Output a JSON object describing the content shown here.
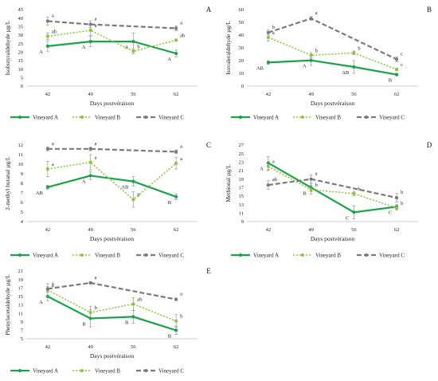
{
  "colors": {
    "A": "#1ba34a",
    "B": "#8cc63f",
    "C": "#7a7a7a",
    "axis": "#bfbfbf",
    "err": "#8a8a8a"
  },
  "chart_data": [
    {
      "type": "line",
      "panel": "A",
      "ylabel": "Isobutyraldehyde µg/L",
      "xlabel": "Days postvéraison",
      "categories": [
        "42",
        "49",
        "56",
        "62"
      ],
      "ylim": [
        0,
        45
      ],
      "yticks": [
        "0",
        "5",
        "10",
        "15",
        "20",
        "25",
        "30",
        "35",
        "40",
        "45"
      ],
      "series": [
        {
          "name": "Vineyard A",
          "values": [
            23.5,
            26.2,
            26.2,
            19.2
          ],
          "err": [
            3,
            3,
            5,
            2
          ],
          "labels": [
            "A",
            "A",
            "A",
            "A"
          ]
        },
        {
          "name": "Vineyard B",
          "values": [
            29.3,
            32.8,
            20.5,
            27.0
          ],
          "err": [
            2,
            3,
            1.5,
            0.5
          ],
          "labels": [
            "ab",
            "a",
            "b",
            "ab"
          ]
        },
        {
          "name": "Vineyard C",
          "values": [
            38.2,
            36.3,
            null,
            34.0
          ],
          "err": [
            2.5,
            2,
            0,
            1.5
          ],
          "labels": [
            "a",
            "a",
            "",
            "a"
          ]
        }
      ]
    },
    {
      "type": "line",
      "panel": "B",
      "ylabel": "Isovaleraldehyde µg/L",
      "xlabel": "Days postvéraison",
      "categories": [
        "42",
        "49",
        "56",
        "62"
      ],
      "ylim": [
        0,
        60
      ],
      "yticks": [
        "0",
        "10",
        "20",
        "30",
        "40",
        "50",
        "60"
      ],
      "series": [
        {
          "name": "Vineyard A",
          "values": [
            18.5,
            20.2,
            15.0,
            9.0
          ],
          "err": [
            1.5,
            4,
            5,
            1
          ],
          "labels": [
            "AB",
            "A",
            "AB",
            "B"
          ]
        },
        {
          "name": "Vineyard B",
          "values": [
            38.2,
            24.2,
            26.0,
            13.0
          ],
          "err": [
            3,
            2,
            1.5,
            1
          ],
          "labels": [
            "a",
            "b",
            "b",
            "c"
          ]
        },
        {
          "name": "Vineyard C",
          "values": [
            42.0,
            53.0,
            null,
            21.0
          ],
          "err": [
            2,
            1.5,
            0,
            2
          ],
          "labels": [
            "b",
            "a",
            "",
            "c"
          ]
        }
      ]
    },
    {
      "type": "line",
      "panel": "C",
      "ylabel": "2-methyl butanal µg/L",
      "xlabel": "Days postvéraison",
      "categories": [
        "42",
        "49",
        "56",
        "62"
      ],
      "ylim": [
        4,
        12
      ],
      "yticks": [
        "4",
        "5",
        "6",
        "7",
        "8",
        "9",
        "10",
        "11",
        "12"
      ],
      "series": [
        {
          "name": "Vineyard A",
          "values": [
            7.6,
            8.8,
            8.2,
            6.6
          ],
          "err": [
            0.2,
            0.4,
            0.5,
            0.3
          ],
          "labels": [
            "AB",
            "A",
            "AB",
            "B"
          ]
        },
        {
          "name": "Vineyard B",
          "values": [
            9.5,
            10.2,
            6.3,
            10.1
          ],
          "err": [
            0.8,
            0.8,
            0.8,
            0.6
          ],
          "labels": [
            "a",
            "a",
            "b",
            "a"
          ]
        },
        {
          "name": "Vineyard C",
          "values": [
            11.6,
            11.6,
            null,
            11.3
          ],
          "err": [
            0.2,
            0.2,
            0,
            0.2
          ],
          "labels": [
            "a",
            "a",
            "",
            "a"
          ]
        }
      ]
    },
    {
      "type": "line",
      "panel": "D",
      "ylabel": "Methional µg/L",
      "xlabel": "Days postvéraison",
      "categories": [
        "42",
        "49",
        "56",
        "62"
      ],
      "ylim": [
        9,
        27
      ],
      "yticks": [
        "9",
        "11",
        "13",
        "15",
        "17",
        "19",
        "21",
        "23",
        "25",
        "27"
      ],
      "series": [
        {
          "name": "Vineyard A",
          "values": [
            22.8,
            17.0,
            11.2,
            12.5
          ],
          "err": [
            1.5,
            1,
            1.5,
            0.5
          ],
          "labels": [
            "A",
            "B",
            "C",
            "C"
          ]
        },
        {
          "name": "Vineyard B",
          "values": [
            22.0,
            16.5,
            15.6,
            12.2
          ],
          "err": [
            1,
            1,
            0.5,
            0.5
          ],
          "labels": [
            "a",
            "b",
            "b",
            "b"
          ]
        },
        {
          "name": "Vineyard C",
          "values": [
            17.6,
            19.0,
            null,
            14.6
          ],
          "err": [
            1,
            1,
            0,
            1
          ],
          "labels": [
            "ab",
            "a",
            "",
            "b"
          ]
        }
      ]
    },
    {
      "type": "line",
      "panel": "E",
      "ylabel": "Phenylacetaldehyde µg/L",
      "xlabel": "Days postvéraison",
      "categories": [
        "42",
        "49",
        "56",
        "62"
      ],
      "ylim": [
        5,
        21
      ],
      "yticks": [
        "5",
        "7",
        "9",
        "11",
        "13",
        "15",
        "17",
        "19",
        "21"
      ],
      "series": [
        {
          "name": "Vineyard A",
          "values": [
            15.0,
            9.8,
            10.2,
            7.0
          ],
          "err": [
            1,
            2,
            1.5,
            1
          ],
          "labels": [
            "A",
            "B",
            "B",
            "B"
          ]
        },
        {
          "name": "Vineyard B",
          "values": [
            16.5,
            11.2,
            13.2,
            9.2
          ],
          "err": [
            1.5,
            1.5,
            1.5,
            1.5
          ],
          "labels": [
            "a",
            "b",
            "ab",
            "b"
          ]
        },
        {
          "name": "Vineyard C",
          "values": [
            16.8,
            18.2,
            null,
            14.3
          ],
          "err": [
            0.5,
            0.3,
            0,
            0.3
          ],
          "labels": [
            "a",
            "a",
            "",
            "a"
          ]
        }
      ]
    }
  ]
}
